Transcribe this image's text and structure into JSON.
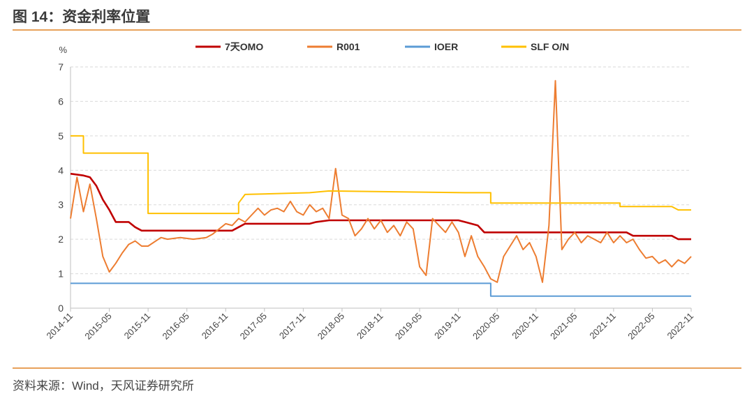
{
  "figure": {
    "title": "图 14：资金利率位置",
    "source": "资料来源：Wind，天风证券研究所"
  },
  "chart_data": {
    "type": "line",
    "ylabel": "%",
    "ylim": [
      0,
      7
    ],
    "yticks": [
      "0",
      "1",
      "2",
      "3",
      "4",
      "5",
      "6",
      "7"
    ],
    "xticks": [
      "2014-11",
      "2015-05",
      "2015-11",
      "2016-05",
      "2016-11",
      "2017-05",
      "2017-11",
      "2018-05",
      "2018-11",
      "2019-05",
      "2019-11",
      "2020-05",
      "2020-11",
      "2021-05",
      "2021-11",
      "2022-05",
      "2022-11"
    ],
    "grid": "horizontal dashed",
    "legend": "top",
    "series": [
      {
        "name": "7天OMO",
        "color": "#c00000",
        "points": [
          [
            "2014-11",
            3.9
          ],
          [
            "2015-01",
            3.85
          ],
          [
            "2015-02",
            3.8
          ],
          [
            "2015-03",
            3.55
          ],
          [
            "2015-04",
            3.15
          ],
          [
            "2015-05",
            2.85
          ],
          [
            "2015-06",
            2.5
          ],
          [
            "2015-08",
            2.5
          ],
          [
            "2015-09",
            2.35
          ],
          [
            "2015-10",
            2.25
          ],
          [
            "2016-12",
            2.25
          ],
          [
            "2017-01",
            2.35
          ],
          [
            "2017-02",
            2.45
          ],
          [
            "2017-12",
            2.45
          ],
          [
            "2018-01",
            2.5
          ],
          [
            "2018-03",
            2.55
          ],
          [
            "2019-11",
            2.55
          ],
          [
            "2019-12",
            2.5
          ],
          [
            "2020-02",
            2.4
          ],
          [
            "2020-03",
            2.2
          ],
          [
            "2022-01",
            2.2
          ],
          [
            "2022-02",
            2.1
          ],
          [
            "2022-08",
            2.1
          ],
          [
            "2022-09",
            2.0
          ],
          [
            "2022-11",
            2.0
          ]
        ]
      },
      {
        "name": "R001",
        "color": "#ed7d31",
        "points": [
          [
            "2014-11",
            2.6
          ],
          [
            "2014-12",
            3.8
          ],
          [
            "2015-01",
            2.8
          ],
          [
            "2015-02",
            3.6
          ],
          [
            "2015-03",
            2.6
          ],
          [
            "2015-04",
            1.5
          ],
          [
            "2015-05",
            1.05
          ],
          [
            "2015-06",
            1.3
          ],
          [
            "2015-07",
            1.6
          ],
          [
            "2015-08",
            1.85
          ],
          [
            "2015-09",
            1.95
          ],
          [
            "2015-10",
            1.8
          ],
          [
            "2015-11",
            1.8
          ],
          [
            "2016-01",
            2.05
          ],
          [
            "2016-02",
            2.0
          ],
          [
            "2016-04",
            2.05
          ],
          [
            "2016-06",
            2.0
          ],
          [
            "2016-08",
            2.05
          ],
          [
            "2016-09",
            2.15
          ],
          [
            "2016-10",
            2.3
          ],
          [
            "2016-11",
            2.45
          ],
          [
            "2016-12",
            2.4
          ],
          [
            "2017-01",
            2.6
          ],
          [
            "2017-02",
            2.5
          ],
          [
            "2017-03",
            2.7
          ],
          [
            "2017-04",
            2.9
          ],
          [
            "2017-05",
            2.7
          ],
          [
            "2017-06",
            2.85
          ],
          [
            "2017-07",
            2.9
          ],
          [
            "2017-08",
            2.8
          ],
          [
            "2017-09",
            3.1
          ],
          [
            "2017-10",
            2.8
          ],
          [
            "2017-11",
            2.7
          ],
          [
            "2017-12",
            3.0
          ],
          [
            "2018-01",
            2.8
          ],
          [
            "2018-02",
            2.9
          ],
          [
            "2018-03",
            2.6
          ],
          [
            "2018-04",
            4.05
          ],
          [
            "2018-05",
            2.7
          ],
          [
            "2018-06",
            2.6
          ],
          [
            "2018-07",
            2.1
          ],
          [
            "2018-08",
            2.3
          ],
          [
            "2018-09",
            2.6
          ],
          [
            "2018-10",
            2.3
          ],
          [
            "2018-11",
            2.55
          ],
          [
            "2018-12",
            2.2
          ],
          [
            "2019-01",
            2.4
          ],
          [
            "2019-02",
            2.1
          ],
          [
            "2019-03",
            2.5
          ],
          [
            "2019-04",
            2.3
          ],
          [
            "2019-05",
            1.2
          ],
          [
            "2019-06",
            0.95
          ],
          [
            "2019-07",
            2.6
          ],
          [
            "2019-08",
            2.4
          ],
          [
            "2019-09",
            2.2
          ],
          [
            "2019-10",
            2.5
          ],
          [
            "2019-11",
            2.2
          ],
          [
            "2019-12",
            1.5
          ],
          [
            "2020-01",
            2.1
          ],
          [
            "2020-02",
            1.5
          ],
          [
            "2020-03",
            1.2
          ],
          [
            "2020-04",
            0.85
          ],
          [
            "2020-05",
            0.75
          ],
          [
            "2020-06",
            1.5
          ],
          [
            "2020-07",
            1.8
          ],
          [
            "2020-08",
            2.1
          ],
          [
            "2020-09",
            1.7
          ],
          [
            "2020-10",
            1.9
          ],
          [
            "2020-11",
            1.5
          ],
          [
            "2020-12",
            0.75
          ],
          [
            "2021-01",
            2.4
          ],
          [
            "2021-02",
            6.6
          ],
          [
            "2021-03",
            1.7
          ],
          [
            "2021-04",
            2.0
          ],
          [
            "2021-05",
            2.2
          ],
          [
            "2021-06",
            1.9
          ],
          [
            "2021-07",
            2.1
          ],
          [
            "2021-08",
            2.0
          ],
          [
            "2021-09",
            1.9
          ],
          [
            "2021-10",
            2.2
          ],
          [
            "2021-11",
            1.9
          ],
          [
            "2021-12",
            2.1
          ],
          [
            "2022-01",
            1.9
          ],
          [
            "2022-02",
            2.0
          ],
          [
            "2022-03",
            1.7
          ],
          [
            "2022-04",
            1.45
          ],
          [
            "2022-05",
            1.5
          ],
          [
            "2022-06",
            1.3
          ],
          [
            "2022-07",
            1.4
          ],
          [
            "2022-08",
            1.2
          ],
          [
            "2022-09",
            1.4
          ],
          [
            "2022-10",
            1.3
          ],
          [
            "2022-11",
            1.5
          ]
        ]
      },
      {
        "name": "IOER",
        "color": "#5b9bd5",
        "points": [
          [
            "2014-11",
            0.72
          ],
          [
            "2020-04",
            0.72
          ],
          [
            "2020-04",
            0.35
          ],
          [
            "2022-11",
            0.35
          ]
        ]
      },
      {
        "name": "SLF O/N",
        "color": "#ffc000",
        "points": [
          [
            "2014-11",
            5.0
          ],
          [
            "2015-01",
            5.0
          ],
          [
            "2015-01",
            4.5
          ],
          [
            "2015-11",
            4.5
          ],
          [
            "2015-11",
            2.75
          ],
          [
            "2017-01",
            2.75
          ],
          [
            "2017-01",
            3.05
          ],
          [
            "2017-02",
            3.3
          ],
          [
            "2017-12",
            3.35
          ],
          [
            "2018-03",
            3.4
          ],
          [
            "2019-12",
            3.35
          ],
          [
            "2020-04",
            3.35
          ],
          [
            "2020-04",
            3.05
          ],
          [
            "2021-12",
            3.05
          ],
          [
            "2021-12",
            2.95
          ],
          [
            "2022-08",
            2.95
          ],
          [
            "2022-09",
            2.85
          ],
          [
            "2022-11",
            2.85
          ]
        ]
      }
    ]
  }
}
